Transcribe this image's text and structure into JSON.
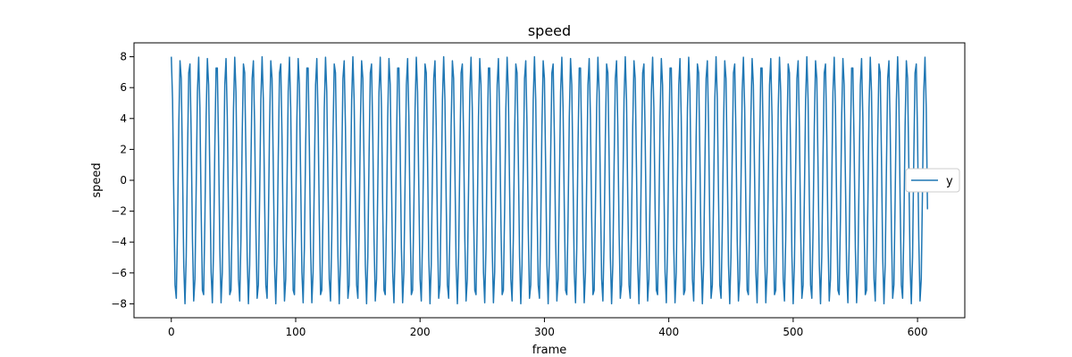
{
  "chart_data": {
    "type": "line",
    "title": "speed",
    "xlabel": "frame",
    "ylabel": "speed",
    "xlim": [
      -30,
      638
    ],
    "ylim": [
      -8.9,
      8.9
    ],
    "xticks": [
      0,
      100,
      200,
      300,
      400,
      500,
      600
    ],
    "yticks": [
      -8,
      -6,
      -4,
      -2,
      0,
      2,
      4,
      6,
      8
    ],
    "grid": false,
    "legend_position": "center right",
    "series": [
      {
        "name": "y",
        "color": "#1f77b4",
        "function": "y = 8 cos(2*pi*x/7.3)",
        "x_start": 0,
        "x_end": 608,
        "x_step": 1
      }
    ]
  }
}
